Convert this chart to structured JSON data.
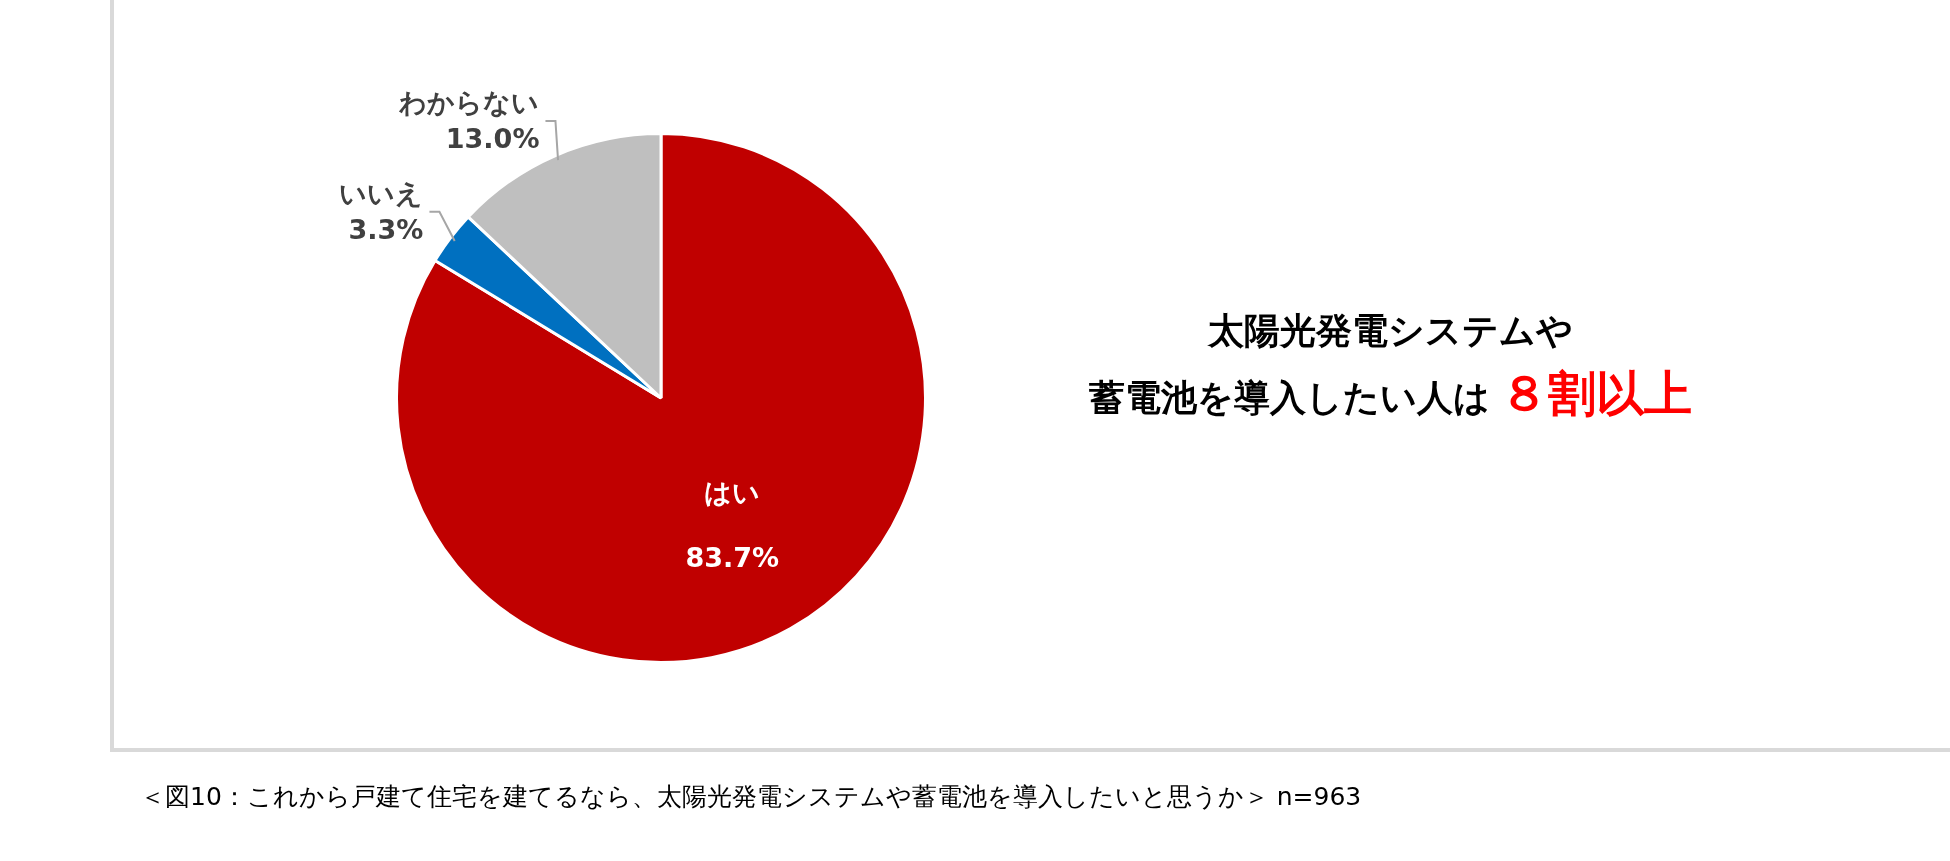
{
  "chart_data": {
    "type": "pie",
    "categories": [
      "はい",
      "いいえ",
      "わからない"
    ],
    "values": [
      83.7,
      3.3,
      13.0
    ],
    "colors": [
      "#c00000",
      "#0070c0",
      "#bfbfbf"
    ],
    "value_labels": [
      "83.7%",
      "3.3%",
      "13.0%"
    ],
    "annotations": [
      "太陽光発電システムや",
      "蓄電池を導入したい人は",
      "８割以上",
      "＜図10：これから戸建て住宅を建てるなら、太陽光発電システムや蓄電池を導入したいと思うか＞ n=963"
    ]
  }
}
